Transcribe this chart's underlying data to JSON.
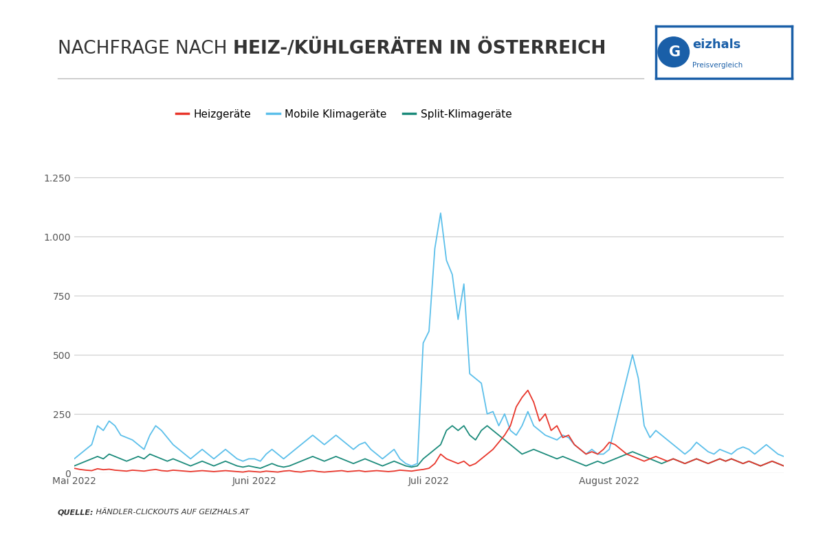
{
  "title_normal": "NACHFRAGE NACH ",
  "title_bold": "HEIZ-/KÜHLGERÄTEN IN ÖSTERREICH",
  "source_bold": "QUELLE:",
  "source_normal": " HÄNDLER-CLICKOUTS AUF GEIZHALS.AT",
  "legend": [
    "Heizgeräte",
    "Mobile Klimageräte",
    "Split-Klimageräte"
  ],
  "colors": [
    "#e8352a",
    "#5bbfea",
    "#1a8a7a"
  ],
  "yticks": [
    0,
    250,
    500,
    750,
    1000,
    1250
  ],
  "xtick_labels": [
    "Mai 2022",
    "Juni 2022",
    "Juli 2022",
    "August 2022"
  ],
  "xtick_positions": [
    0,
    31,
    61,
    92
  ],
  "background_color": "#ffffff",
  "grid_color": "#cccccc",
  "heizgeraete": [
    20,
    15,
    12,
    10,
    18,
    14,
    16,
    12,
    10,
    8,
    12,
    10,
    8,
    12,
    15,
    10,
    8,
    12,
    10,
    8,
    6,
    8,
    10,
    8,
    6,
    8,
    10,
    8,
    6,
    4,
    8,
    6,
    4,
    8,
    6,
    4,
    8,
    10,
    6,
    4,
    8,
    10,
    6,
    4,
    6,
    8,
    10,
    6,
    8,
    10,
    6,
    8,
    10,
    8,
    6,
    8,
    12,
    10,
    8,
    12,
    15,
    20,
    40,
    80,
    60,
    50,
    40,
    50,
    30,
    40,
    60,
    80,
    100,
    130,
    160,
    200,
    280,
    320,
    350,
    300,
    220,
    250,
    180,
    200,
    150,
    160,
    120,
    100,
    80,
    90,
    80,
    100,
    130,
    120,
    100,
    80,
    70,
    60,
    50,
    60,
    70,
    60,
    50,
    60,
    50,
    40,
    50,
    60,
    50,
    40,
    50,
    60,
    50,
    60,
    50,
    40,
    50,
    40,
    30,
    40,
    50,
    40,
    30
  ],
  "mobile_klima": [
    60,
    80,
    100,
    120,
    200,
    180,
    220,
    200,
    160,
    150,
    140,
    120,
    100,
    160,
    200,
    180,
    150,
    120,
    100,
    80,
    60,
    80,
    100,
    80,
    60,
    80,
    100,
    80,
    60,
    50,
    60,
    60,
    50,
    80,
    100,
    80,
    60,
    80,
    100,
    120,
    140,
    160,
    140,
    120,
    140,
    160,
    140,
    120,
    100,
    120,
    130,
    100,
    80,
    60,
    80,
    100,
    60,
    40,
    30,
    40,
    550,
    600,
    950,
    1100,
    900,
    840,
    650,
    800,
    420,
    400,
    380,
    250,
    260,
    200,
    250,
    180,
    160,
    200,
    260,
    200,
    180,
    160,
    150,
    140,
    160,
    150,
    120,
    100,
    80,
    100,
    80,
    80,
    100,
    200,
    300,
    400,
    500,
    400,
    200,
    150,
    180,
    160,
    140,
    120,
    100,
    80,
    100,
    130,
    110,
    90,
    80,
    100,
    90,
    80,
    100,
    110,
    100,
    80,
    100,
    120,
    100,
    80,
    70
  ],
  "split_klima": [
    30,
    40,
    50,
    60,
    70,
    60,
    80,
    70,
    60,
    50,
    60,
    70,
    60,
    80,
    70,
    60,
    50,
    60,
    50,
    40,
    30,
    40,
    50,
    40,
    30,
    40,
    50,
    40,
    30,
    25,
    30,
    25,
    20,
    30,
    40,
    30,
    25,
    30,
    40,
    50,
    60,
    70,
    60,
    50,
    60,
    70,
    60,
    50,
    40,
    50,
    60,
    50,
    40,
    30,
    40,
    50,
    40,
    30,
    25,
    30,
    60,
    80,
    100,
    120,
    180,
    200,
    180,
    200,
    160,
    140,
    180,
    200,
    180,
    160,
    140,
    120,
    100,
    80,
    90,
    100,
    90,
    80,
    70,
    60,
    70,
    60,
    50,
    40,
    30,
    40,
    50,
    40,
    50,
    60,
    70,
    80,
    90,
    80,
    70,
    60,
    50,
    40,
    50,
    60,
    50,
    40,
    50,
    60,
    50,
    40,
    50,
    60,
    50,
    60,
    50,
    40,
    50,
    40,
    30,
    40,
    50,
    40,
    30
  ]
}
